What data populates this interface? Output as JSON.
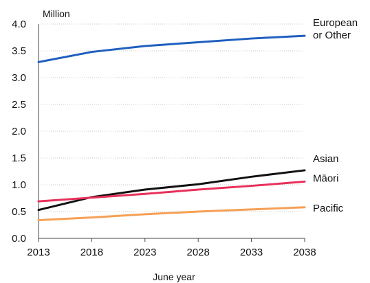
{
  "chart_data": {
    "type": "line",
    "xlabel": "June year",
    "ylabel": "Million",
    "x": [
      2013,
      2018,
      2023,
      2028,
      2033,
      2038
    ],
    "xticks": [
      "2013",
      "2018",
      "2023",
      "2028",
      "2033",
      "2038"
    ],
    "yticks": [
      "0.0",
      "0.5",
      "1.0",
      "1.5",
      "2.0",
      "2.5",
      "3.0",
      "3.5",
      "4.0"
    ],
    "ylim": [
      0,
      4
    ],
    "xlim": [
      2013,
      2038
    ],
    "grid": "horizontal-dotted",
    "legend": "direct-labels-right",
    "series": [
      {
        "name": "European or Other",
        "label_lines": [
          "European",
          "or Other"
        ],
        "color": "#1f5fbf",
        "values": [
          3.29,
          3.48,
          3.59,
          3.66,
          3.73,
          3.78
        ]
      },
      {
        "name": "Asian",
        "label_lines": [
          "Asian"
        ],
        "color": "#111111",
        "values": [
          0.53,
          0.77,
          0.91,
          1.01,
          1.15,
          1.27
        ]
      },
      {
        "name": "Māori",
        "label_lines": [
          "Māori"
        ],
        "color": "#e8305a",
        "values": [
          0.69,
          0.76,
          0.83,
          0.91,
          0.98,
          1.06
        ]
      },
      {
        "name": "Pacific",
        "label_lines": [
          "Pacific"
        ],
        "color": "#f5a055",
        "values": [
          0.34,
          0.39,
          0.45,
          0.5,
          0.54,
          0.58
        ]
      }
    ]
  }
}
